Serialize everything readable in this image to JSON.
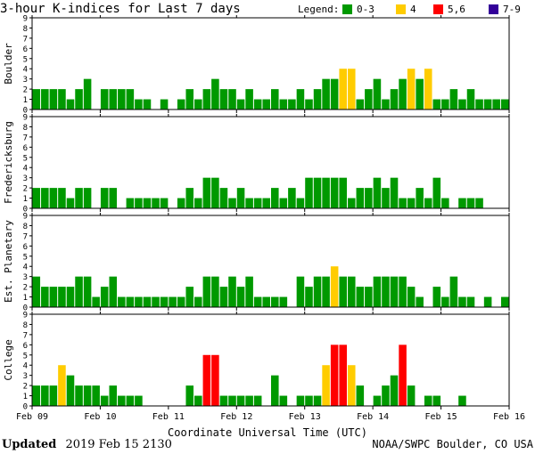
{
  "chart_data": {
    "type": "bar",
    "title": "3-hour K-indices for Last 7 days",
    "legend": {
      "label": "Legend:",
      "items": [
        {
          "label": "0-3",
          "color": "#009900"
        },
        {
          "label": "4",
          "color": "#ffcc00"
        },
        {
          "label": "5,6",
          "color": "#ff0000"
        },
        {
          "label": "7-9",
          "color": "#330099"
        }
      ]
    },
    "xlabel": "Coordinate Universal Time (UTC)",
    "x_ticks": [
      "Feb 09",
      "Feb 10",
      "Feb 11",
      "Feb 12",
      "Feb 13",
      "Feb 14",
      "Feb 15",
      "Feb 16"
    ],
    "ylim": [
      0,
      9
    ],
    "y_ticks": [
      "0",
      "1",
      "2",
      "3",
      "4",
      "5",
      "6",
      "7",
      "8",
      "9"
    ],
    "bins_per_day": 8,
    "panels": [
      {
        "name": "Boulder",
        "values": [
          2,
          2,
          2,
          2,
          1,
          2,
          3,
          0,
          2,
          2,
          2,
          2,
          1,
          1,
          0,
          1,
          0,
          1,
          2,
          1,
          2,
          3,
          2,
          2,
          1,
          2,
          1,
          1,
          2,
          1,
          1,
          2,
          1,
          2,
          3,
          3,
          4,
          4,
          1,
          2,
          3,
          1,
          2,
          3,
          4,
          3,
          4,
          1,
          1,
          2,
          1,
          2,
          1,
          1,
          1,
          1,
          0
        ]
      },
      {
        "name": "Fredericksburg",
        "values": [
          2,
          2,
          2,
          2,
          1,
          2,
          2,
          0,
          2,
          2,
          0,
          1,
          1,
          1,
          1,
          1,
          0,
          1,
          2,
          1,
          3,
          3,
          2,
          1,
          2,
          1,
          1,
          1,
          2,
          1,
          2,
          1,
          3,
          3,
          3,
          3,
          3,
          1,
          2,
          2,
          3,
          2,
          3,
          1,
          1,
          2,
          1,
          3,
          1,
          0,
          1,
          1,
          1,
          0
        ]
      },
      {
        "name": "Est. Planetary",
        "values": [
          3,
          2,
          2,
          2,
          2,
          3,
          3,
          1,
          2,
          3,
          1,
          1,
          1,
          1,
          1,
          1,
          1,
          1,
          2,
          1,
          3,
          3,
          2,
          3,
          2,
          3,
          1,
          1,
          1,
          1,
          0,
          3,
          2,
          3,
          3,
          4,
          3,
          3,
          2,
          2,
          3,
          3,
          3,
          3,
          2,
          1,
          0,
          2,
          1,
          3,
          1,
          1,
          0,
          1,
          0,
          1,
          0
        ]
      },
      {
        "name": "College",
        "values": [
          2,
          2,
          2,
          4,
          3,
          2,
          2,
          2,
          1,
          2,
          1,
          1,
          1,
          0,
          0,
          0,
          0,
          0,
          2,
          1,
          5,
          5,
          1,
          1,
          1,
          1,
          1,
          0,
          3,
          1,
          0,
          1,
          1,
          1,
          4,
          6,
          6,
          4,
          2,
          0,
          1,
          2,
          3,
          6,
          2,
          0,
          1,
          1,
          0,
          0,
          1,
          0,
          0,
          0,
          0,
          0,
          0
        ]
      }
    ]
  },
  "footer": {
    "updated_label": "Updated",
    "updated_value": "2019 Feb 15 2130",
    "credit": "NOAA/SWPC Boulder, CO USA"
  }
}
